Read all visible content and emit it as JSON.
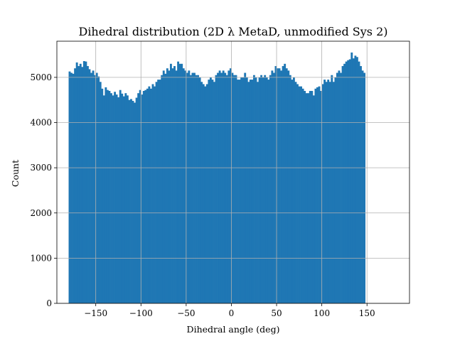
{
  "chart_data": {
    "type": "bar",
    "title": "Dihedral distribution (2D λ MetaD, unmodified Sys 2)",
    "xlabel": "Dihedral angle (deg)",
    "ylabel": "Count",
    "xlim": [
      -193,
      197
    ],
    "ylim": [
      0,
      5800
    ],
    "xticks": [
      -150,
      -100,
      -50,
      0,
      50,
      100,
      150
    ],
    "xtick_labels": [
      "−150",
      "−100",
      "−50",
      "0",
      "50",
      "100",
      "150"
    ],
    "yticks": [
      0,
      1000,
      2000,
      3000,
      4000,
      5000
    ],
    "ytick_labels": [
      "0",
      "1000",
      "2000",
      "3000",
      "4000",
      "5000"
    ],
    "grid": true,
    "bar_color": "#1f77b4",
    "bins": {
      "start": -180,
      "width": 2,
      "counts": [
        5130,
        5100,
        5080,
        5200,
        5330,
        5250,
        5300,
        5230,
        5360,
        5350,
        5250,
        5180,
        5100,
        5150,
        5050,
        5100,
        5020,
        4900,
        4750,
        4600,
        4780,
        4720,
        4700,
        4650,
        4600,
        4680,
        4620,
        4560,
        4720,
        4640,
        4580,
        4650,
        4600,
        4500,
        4520,
        4480,
        4440,
        4550,
        4650,
        4720,
        4620,
        4700,
        4720,
        4750,
        4800,
        4750,
        4850,
        4800,
        4900,
        4950,
        4950,
        5050,
        5150,
        5080,
        5200,
        5150,
        5300,
        5200,
        5250,
        5150,
        5350,
        5300,
        5300,
        5200,
        5150,
        5100,
        5150,
        5050,
        5100,
        5100,
        5050,
        5050,
        5000,
        4900,
        4850,
        4800,
        4850,
        4950,
        5000,
        4950,
        4900,
        5050,
        5100,
        5150,
        5100,
        5150,
        5100,
        5050,
        5150,
        5200,
        5100,
        5050,
        5050,
        4950,
        4950,
        5000,
        5000,
        5100,
        5000,
        4900,
        4950,
        4950,
        5050,
        5000,
        4900,
        5000,
        5050,
        5000,
        5050,
        5000,
        4950,
        5050,
        5150,
        5100,
        5250,
        5200,
        5200,
        5150,
        5250,
        5300,
        5200,
        5150,
        5050,
        4950,
        5000,
        4900,
        4850,
        4800,
        4800,
        4750,
        4700,
        4650,
        4650,
        4700,
        4700,
        4600,
        4750,
        4780,
        4800,
        4700,
        4850,
        4950,
        4900,
        4950,
        4900,
        5050,
        4900,
        5000,
        5100,
        5150,
        5100,
        5250,
        5300,
        5350,
        5380,
        5400,
        5550,
        5420,
        5480,
        5450,
        5350,
        5250,
        5150,
        5100
      ]
    }
  }
}
